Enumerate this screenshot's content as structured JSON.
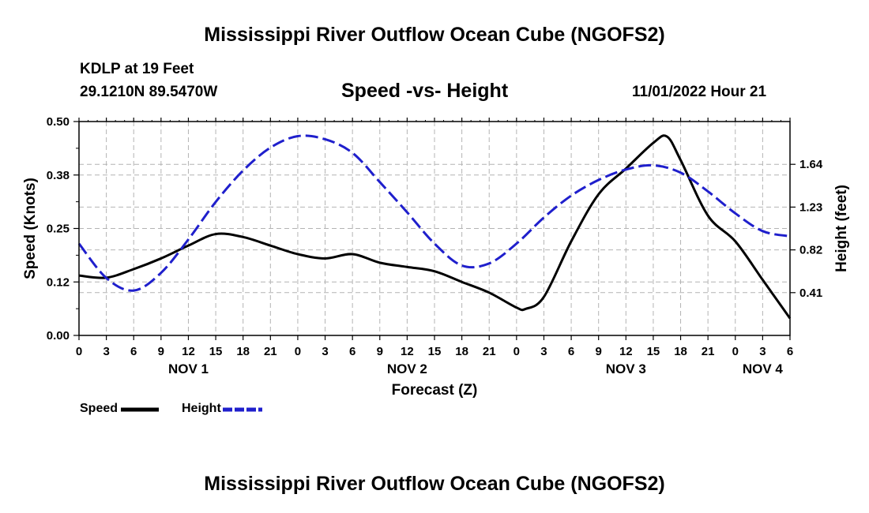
{
  "header": {
    "title": "Mississippi River Outflow Ocean Cube (NGOFS2)",
    "station": "KDLP at 19 Feet",
    "coords": "29.1210N  89.5470W",
    "subtitle": "Speed -vs- Height",
    "datetime": "11/01/2022 Hour 21"
  },
  "footer": {
    "title": "Mississippi River Outflow Ocean Cube (NGOFS2)"
  },
  "legend": {
    "speed_label": "Speed",
    "height_label": "Height"
  },
  "colors": {
    "speed": "#000000",
    "height": "#1f1fcc",
    "grid": "#b4b4b4"
  },
  "chart_data": {
    "type": "line",
    "xlabel": "Forecast (Z)",
    "ylabel_left": "Speed (Knots)",
    "ylabel_right": "Height (feet)",
    "x_range_hours": [
      0,
      78
    ],
    "x_tick_labels": [
      "0",
      "3",
      "6",
      "9",
      "12",
      "15",
      "18",
      "21",
      "0",
      "3",
      "6",
      "9",
      "12",
      "15",
      "18",
      "21",
      "0",
      "3",
      "6",
      "9",
      "12",
      "15",
      "18",
      "21",
      "0",
      "3",
      "6"
    ],
    "day_labels": [
      {
        "label": "NOV 1",
        "hour": 12
      },
      {
        "label": "NOV 2",
        "hour": 36
      },
      {
        "label": "NOV 3",
        "hour": 60
      },
      {
        "label": "NOV 4",
        "hour": 75
      }
    ],
    "left_axis": {
      "range": [
        0,
        0.5
      ],
      "ticks": [
        0.0,
        0.125,
        0.25,
        0.375,
        0.5
      ],
      "tick_labels": [
        "0.00",
        "0.12",
        "0.25",
        "0.38",
        "0.50"
      ]
    },
    "right_axis": {
      "range": [
        0,
        2.05
      ],
      "ticks": [
        0.41,
        0.82,
        1.23,
        1.64
      ],
      "tick_labels": [
        "0.41",
        "0.82",
        "1.23",
        "1.64"
      ]
    },
    "series": [
      {
        "name": "Speed",
        "axis": "left",
        "style": "solid",
        "x": [
          0,
          3,
          6,
          9,
          12,
          15,
          18,
          21,
          24,
          27,
          30,
          33,
          36,
          39,
          42,
          45,
          48,
          49,
          51,
          54,
          57,
          60,
          63,
          64.5,
          66,
          69,
          72,
          75,
          78
        ],
        "y": [
          0.14,
          0.135,
          0.155,
          0.18,
          0.21,
          0.237,
          0.23,
          0.21,
          0.19,
          0.18,
          0.19,
          0.17,
          0.16,
          0.15,
          0.125,
          0.1,
          0.065,
          0.062,
          0.09,
          0.22,
          0.33,
          0.39,
          0.45,
          0.465,
          0.41,
          0.28,
          0.22,
          0.13,
          0.04
        ]
      },
      {
        "name": "Height",
        "axis": "right",
        "style": "dashed",
        "x": [
          0,
          3,
          6,
          9,
          12,
          15,
          18,
          21,
          24,
          27,
          30,
          33,
          36,
          39,
          42,
          45,
          48,
          51,
          54,
          57,
          60,
          63,
          66,
          69,
          72,
          75,
          78
        ],
        "y": [
          0.88,
          0.55,
          0.43,
          0.6,
          0.92,
          1.28,
          1.58,
          1.8,
          1.91,
          1.88,
          1.75,
          1.47,
          1.18,
          0.88,
          0.67,
          0.69,
          0.88,
          1.13,
          1.34,
          1.49,
          1.59,
          1.63,
          1.56,
          1.38,
          1.17,
          1.0,
          0.95
        ]
      }
    ]
  }
}
